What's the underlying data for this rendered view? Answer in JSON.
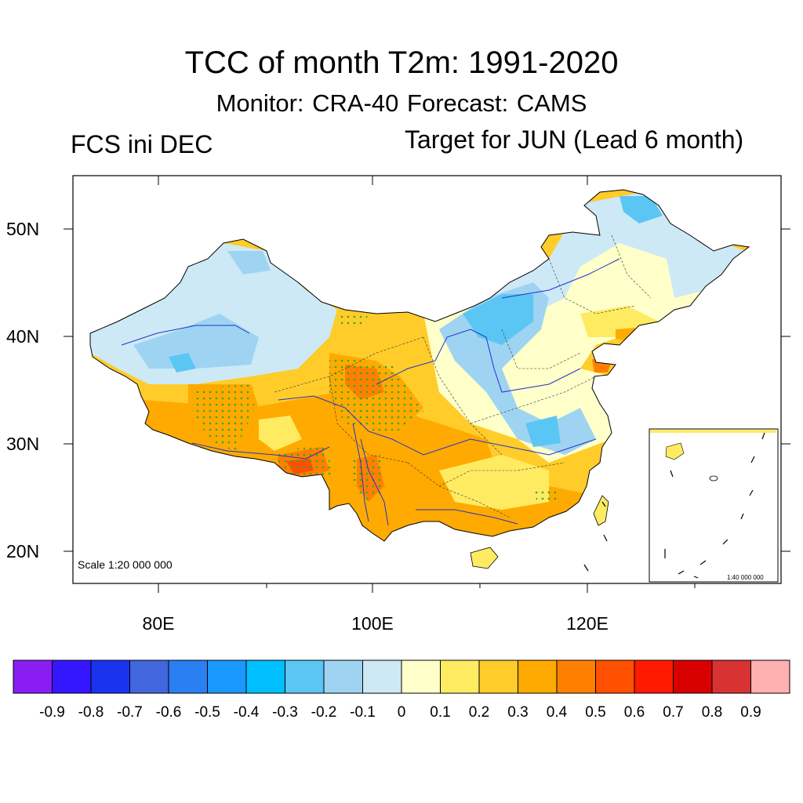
{
  "title": "TCC of month T2m: 1991-2020",
  "subtitle": "Monitor: CRA-40   Forecast: CAMS",
  "left_label": "FCS ini DEC",
  "right_label": "Target for JUN (Lead 6 month)",
  "scale_main": "Scale 1:20 000 000",
  "scale_inset": "1:40 000 000",
  "lat_labels": [
    "50N",
    "40N",
    "30N",
    "20N"
  ],
  "lon_labels": [
    "80E",
    "100E",
    "120E"
  ],
  "colorbar": {
    "colors": [
      "#8a1ef2",
      "#3416ff",
      "#1a33ee",
      "#4166dd",
      "#2a7ff2",
      "#1998ff",
      "#00bfff",
      "#5bc6f4",
      "#9ed4f2",
      "#cde9f6",
      "#ffffca",
      "#ffeb62",
      "#ffcc2a",
      "#ffaa00",
      "#ff8000",
      "#ff5000",
      "#ff1a00",
      "#d90000",
      "#d83232",
      "#ffb0b0"
    ],
    "labels": [
      "-0.9",
      "-0.8",
      "-0.7",
      "-0.6",
      "-0.5",
      "-0.4",
      "-0.3",
      "-0.2",
      "-0.1",
      "0",
      "0.1",
      "0.2",
      "0.3",
      "0.4",
      "0.5",
      "0.6",
      "0.7",
      "0.8",
      "0.9"
    ]
  },
  "map_colors": {
    "light_blue": "#cde9f6",
    "mid_blue": "#9ed4f2",
    "blue": "#5bc6f4",
    "pale_yellow": "#ffffca",
    "yellow": "#ffeb62",
    "gold": "#ffcc2a",
    "orange": "#ffaa00",
    "dark_orange": "#ff8000",
    "red_orange": "#ff5000",
    "stipple": "#2eaa2e",
    "river": "#2233cc"
  }
}
